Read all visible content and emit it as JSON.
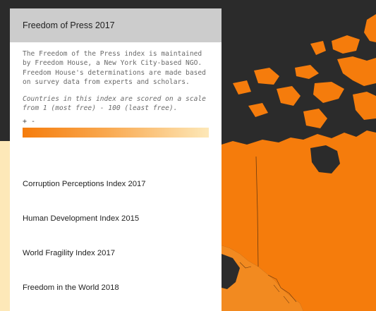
{
  "colors": {
    "background": "#2b2b2b",
    "land_most_free": "#f57c0c",
    "land_least_free": "#fde8b8",
    "border": "#6b3a10"
  },
  "panel": {
    "active_index": {
      "title": "Freedom of Press 2017",
      "description": "The Freedom of the Press index is maintained by Freedom House, a New York City-based NGO. Freedom House's determinations are made based on survey data from experts and scholars.",
      "scale_note": "Countries in this index are scored on a scale from 1 (most free) - 100 (least free).",
      "legend": {
        "plus": "+",
        "minus": "-"
      }
    },
    "other_indices": [
      "Corruption Perceptions Index 2017",
      "Human Development Index 2015",
      "World Fragility Index 2017",
      "Freedom in the World 2018"
    ]
  }
}
